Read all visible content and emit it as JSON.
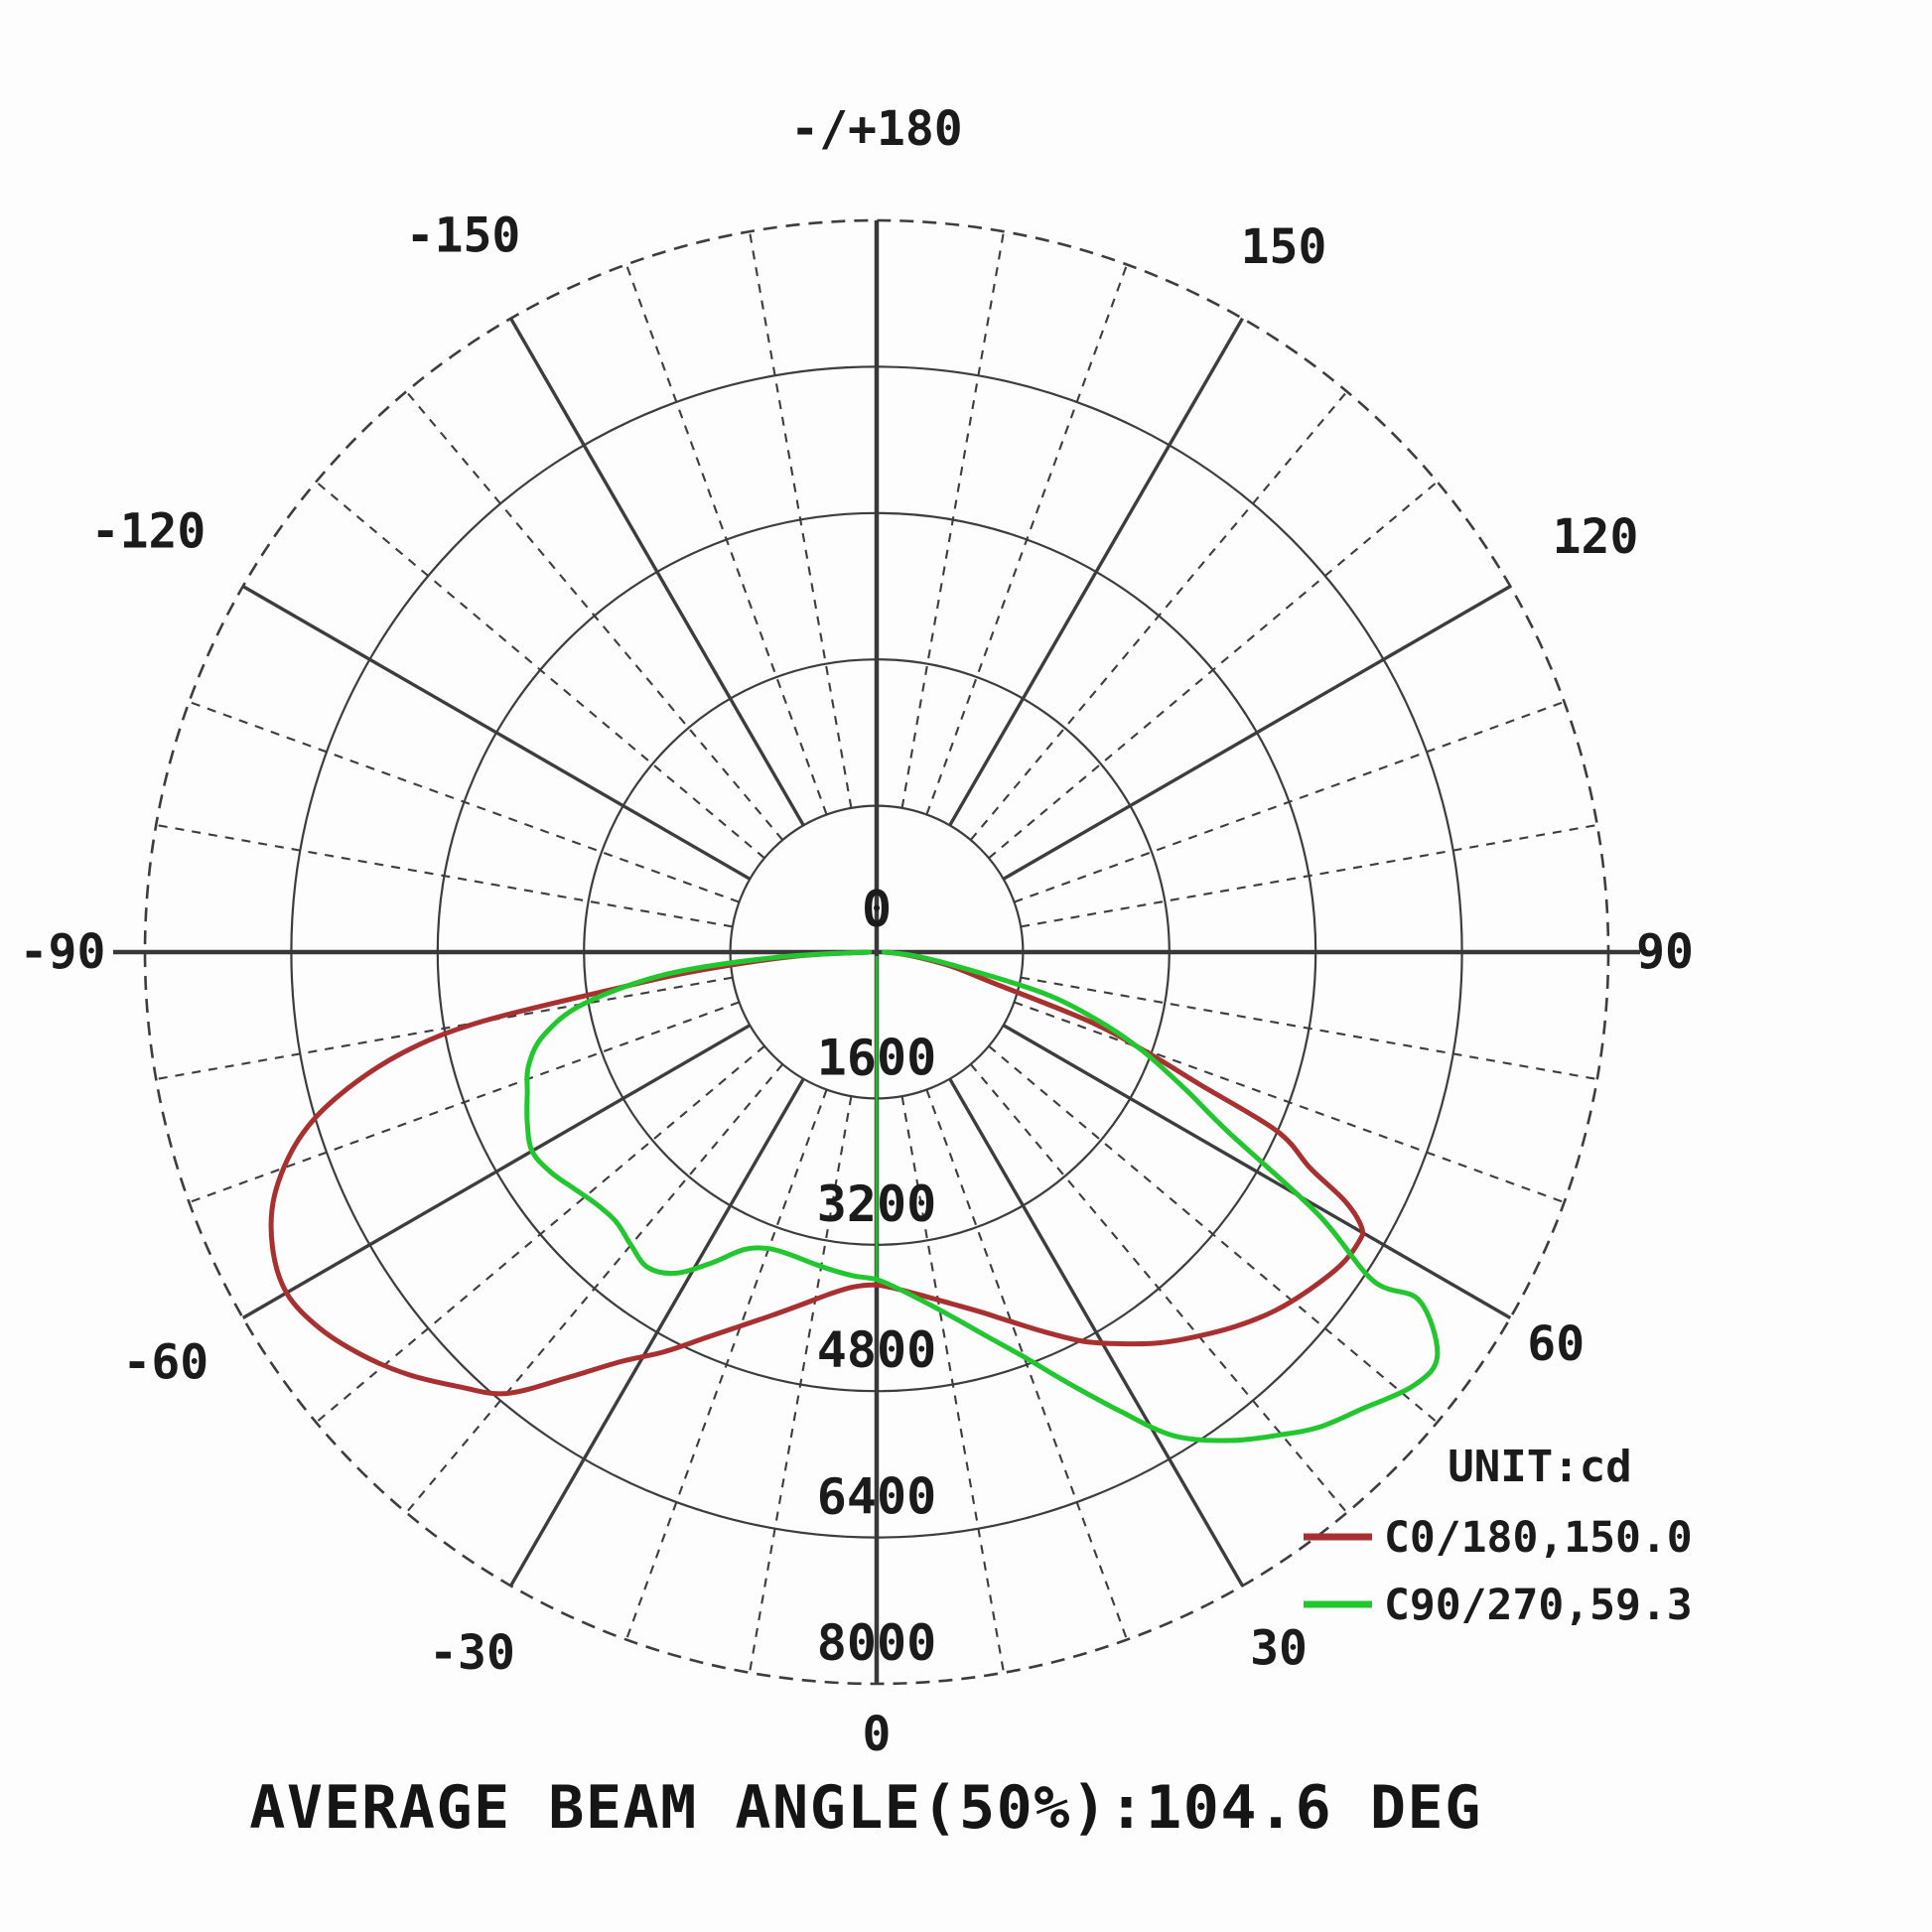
{
  "chart_data": {
    "type": "polar_photometric",
    "title": "",
    "caption": "AVERAGE BEAM ANGLE(50%):104.6 DEG",
    "unit_label": "UNIT:cd",
    "radial_axis": {
      "ticks": [
        0,
        1600,
        3200,
        4800,
        6400,
        8000
      ],
      "max": 8000,
      "center_label": "0"
    },
    "angle_axis": {
      "step_deg": 10,
      "major_step_deg": 30,
      "labels": [
        {
          "angle": 180,
          "text": "-/+180"
        },
        {
          "angle": 150,
          "text": "150"
        },
        {
          "angle": 120,
          "text": "120"
        },
        {
          "angle": 90,
          "text": "90"
        },
        {
          "angle": 60,
          "text": "60"
        },
        {
          "angle": 30,
          "text": "30"
        },
        {
          "angle": 0,
          "text": "0"
        },
        {
          "angle": -30,
          "text": "-30"
        },
        {
          "angle": -60,
          "text": "-60"
        },
        {
          "angle": -90,
          "text": "-90"
        },
        {
          "angle": -120,
          "text": "-120"
        },
        {
          "angle": -150,
          "text": "-150"
        }
      ]
    },
    "legend": {
      "position": "bottom-right",
      "unit_label": "UNIT:cd",
      "entries": [
        {
          "label": "C0/180,150.0",
          "color": "#a93030"
        },
        {
          "label": "C90/270,59.3",
          "color": "#22c72f"
        }
      ]
    },
    "series": [
      {
        "name": "C0/180,150.0",
        "color": "#a93030",
        "zero_radial_line": false,
        "points": [
          [
            -90,
            80
          ],
          [
            -87,
            900
          ],
          [
            -84,
            2000
          ],
          [
            -82,
            2900
          ],
          [
            -80,
            4400
          ],
          [
            -78,
            5300
          ],
          [
            -75,
            6100
          ],
          [
            -72,
            6650
          ],
          [
            -68,
            7100
          ],
          [
            -64,
            7350
          ],
          [
            -60,
            7450
          ],
          [
            -56,
            7350
          ],
          [
            -52,
            7150
          ],
          [
            -48,
            6900
          ],
          [
            -44,
            6600
          ],
          [
            -40,
            6300
          ],
          [
            -36,
            5750
          ],
          [
            -32,
            5280
          ],
          [
            -28,
            4950
          ],
          [
            -24,
            4620
          ],
          [
            -20,
            4350
          ],
          [
            -16,
            4130
          ],
          [
            -12,
            3940
          ],
          [
            -8,
            3780
          ],
          [
            -4,
            3670
          ],
          [
            0,
            3640
          ],
          [
            4,
            3700
          ],
          [
            8,
            3800
          ],
          [
            12,
            3930
          ],
          [
            16,
            4090
          ],
          [
            20,
            4300
          ],
          [
            24,
            4550
          ],
          [
            28,
            4820
          ],
          [
            32,
            5050
          ],
          [
            36,
            5280
          ],
          [
            40,
            5480
          ],
          [
            44,
            5680
          ],
          [
            48,
            5860
          ],
          [
            52,
            6000
          ],
          [
            56,
            6120
          ],
          [
            59,
            6150
          ],
          [
            60.4,
            6100
          ],
          [
            62,
            5800
          ],
          [
            63.5,
            5300
          ],
          [
            65.9,
            4800
          ],
          [
            67.7,
            3830
          ],
          [
            69.5,
            3200
          ],
          [
            71.9,
            2470
          ],
          [
            75.2,
            1310
          ],
          [
            79,
            850
          ],
          [
            83,
            450
          ],
          [
            87,
            200
          ],
          [
            90,
            80
          ]
        ]
      },
      {
        "name": "C90/270,59.3",
        "color": "#22c72f",
        "zero_radial_line": true,
        "points": [
          [
            -90,
            80
          ],
          [
            -87,
            1100
          ],
          [
            -84,
            2300
          ],
          [
            -80,
            3250
          ],
          [
            -76,
            3750
          ],
          [
            -72,
            4000
          ],
          [
            -68,
            4120
          ],
          [
            -64,
            4250
          ],
          [
            -60,
            4350
          ],
          [
            -56,
            4300
          ],
          [
            -52,
            4200
          ],
          [
            -48,
            4120
          ],
          [
            -44,
            4100
          ],
          [
            -40,
            4180
          ],
          [
            -36,
            4260
          ],
          [
            -32,
            4140
          ],
          [
            -28,
            3850
          ],
          [
            -24,
            3560
          ],
          [
            -20,
            3450
          ],
          [
            -16,
            3440
          ],
          [
            -12,
            3470
          ],
          [
            -8,
            3510
          ],
          [
            -4,
            3550
          ],
          [
            0,
            3580
          ],
          [
            4,
            3700
          ],
          [
            8,
            3870
          ],
          [
            12,
            4090
          ],
          [
            16,
            4370
          ],
          [
            20,
            4710
          ],
          [
            24,
            5160
          ],
          [
            28,
            5690
          ],
          [
            31.6,
            6210
          ],
          [
            36,
            6600
          ],
          [
            39.9,
            6880
          ],
          [
            43,
            7100
          ],
          [
            46.6,
            7280
          ],
          [
            51.2,
            7550
          ],
          [
            54.3,
            7550
          ],
          [
            57.3,
            7050
          ],
          [
            56.5,
            6510
          ],
          [
            59.3,
            5610
          ],
          [
            62.9,
            4320
          ],
          [
            66,
            3700
          ],
          [
            69.7,
            3090
          ],
          [
            73,
            2500
          ],
          [
            76.2,
            1870
          ],
          [
            79.6,
            960
          ],
          [
            84,
            450
          ],
          [
            87,
            200
          ],
          [
            90,
            80
          ]
        ]
      }
    ]
  }
}
